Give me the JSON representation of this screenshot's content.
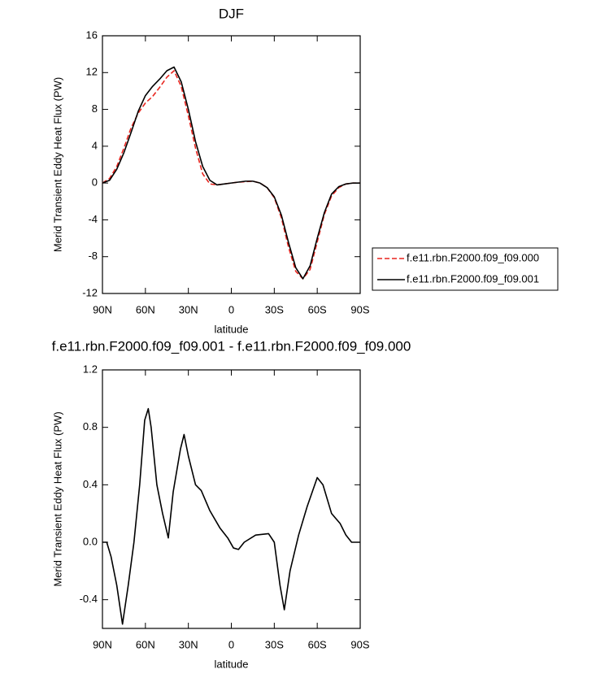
{
  "chart_data": [
    {
      "type": "line",
      "title": "DJF",
      "xlabel": "latitude",
      "ylabel": "Merid Transient Eddy Heat Flux (PW)",
      "x": [
        90,
        85,
        80,
        75,
        70,
        65,
        60,
        55,
        50,
        45,
        40,
        35,
        30,
        25,
        20,
        15,
        10,
        5,
        0,
        -5,
        -10,
        -15,
        -20,
        -25,
        -30,
        -35,
        -40,
        -45,
        -50,
        -55,
        -60,
        -65,
        -70,
        -75,
        -80,
        -85,
        -90
      ],
      "series": [
        {
          "name": "f.e11.rbn.F2000.f09_f09.000",
          "color": "#e8251e",
          "dash": "dashed",
          "values": [
            0,
            0.5,
            1.8,
            3.8,
            6.0,
            7.6,
            8.7,
            9.4,
            10.4,
            11.5,
            12.2,
            10.5,
            7.3,
            3.8,
            1.0,
            -0.1,
            -0.2,
            -0.1,
            0,
            0.1,
            0.15,
            0.2,
            0,
            -0.5,
            -1.6,
            -3.8,
            -7.0,
            -9.6,
            -10.4,
            -9.4,
            -6.4,
            -3.4,
            -1.4,
            -0.5,
            -0.1,
            0,
            0
          ]
        },
        {
          "name": "f.e11.rbn.F2000.f09_f09.001",
          "color": "#000000",
          "dash": "solid",
          "values": [
            0,
            0.3,
            1.5,
            3.3,
            5.5,
            7.8,
            9.5,
            10.5,
            11.3,
            12.2,
            12.6,
            11.0,
            8.0,
            4.5,
            1.8,
            0.3,
            -0.2,
            -0.1,
            0,
            0.1,
            0.2,
            0.2,
            0,
            -0.5,
            -1.5,
            -3.5,
            -6.5,
            -9.2,
            -10.4,
            -9.0,
            -6.0,
            -3.2,
            -1.2,
            -0.4,
            -0.1,
            0,
            0
          ]
        }
      ],
      "xlim": [
        90,
        -90
      ],
      "ylim": [
        -12,
        16
      ],
      "xticks": [
        {
          "value": 90,
          "label": "90N"
        },
        {
          "value": 60,
          "label": "60N"
        },
        {
          "value": 30,
          "label": "30N"
        },
        0,
        {
          "value": -30,
          "label": "30S"
        },
        {
          "value": -60,
          "label": "60S"
        },
        {
          "value": -90,
          "label": "90S"
        }
      ],
      "yticks": [
        -12,
        -8,
        -4,
        0,
        4,
        8,
        12,
        16
      ],
      "legend": "right"
    },
    {
      "type": "line",
      "title": "f.e11.rbn.F2000.f09_f09.001 - f.e11.rbn.F2000.f09_f09.000",
      "xlabel": "latitude",
      "ylabel": "Merid Transient Eddy Heat Flux (PW)",
      "x": [
        90,
        87,
        84,
        80,
        76,
        72,
        68,
        64,
        60.5,
        58,
        56,
        52,
        48,
        44,
        40.6,
        35.5,
        33,
        30,
        25,
        21,
        15,
        8,
        2.5,
        -1.5,
        -5,
        -9,
        -17,
        -26,
        -30,
        -34,
        -37,
        -41,
        -47,
        -53,
        -60,
        -64,
        -70,
        -76,
        -80,
        -84,
        -90
      ],
      "series": [
        {
          "color": "#000000",
          "dash": "solid",
          "values": [
            0,
            0,
            -0.1,
            -0.3,
            -0.57,
            -0.3,
            0,
            0.4,
            0.85,
            0.93,
            0.8,
            0.4,
            0.2,
            0.03,
            0.35,
            0.65,
            0.75,
            0.6,
            0.4,
            0.36,
            0.22,
            0.1,
            0.03,
            -0.04,
            -0.05,
            0,
            0.05,
            0.06,
            0,
            -0.3,
            -0.47,
            -0.2,
            0.05,
            0.25,
            0.45,
            0.4,
            0.2,
            0.13,
            0.05,
            0,
            0
          ]
        }
      ],
      "xlim": [
        90,
        -90
      ],
      "ylim": [
        -0.6,
        1.2
      ],
      "xticks": [
        {
          "value": 90,
          "label": "90N"
        },
        {
          "value": 60,
          "label": "60N"
        },
        {
          "value": 30,
          "label": "30N"
        },
        0,
        {
          "value": -30,
          "label": "30S"
        },
        {
          "value": -60,
          "label": "60S"
        },
        {
          "value": -90,
          "label": "90S"
        }
      ],
      "yticks": [
        -0.4,
        {
          "value": 0,
          "label": "0.0"
        },
        0.4,
        0.8,
        1.2
      ]
    }
  ]
}
